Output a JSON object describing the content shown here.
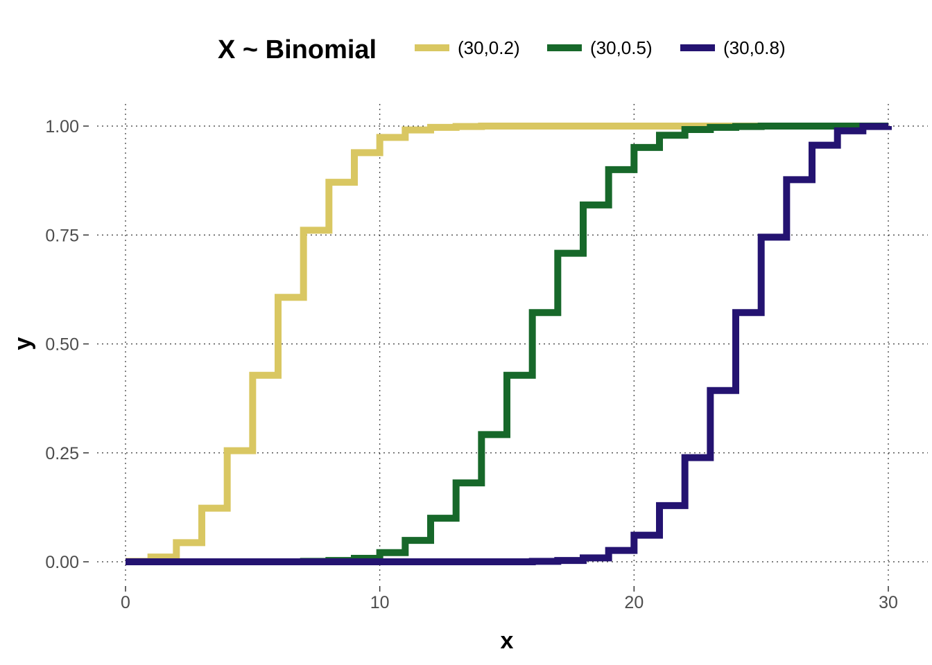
{
  "chart_data": {
    "type": "line",
    "step": true,
    "title": "",
    "xlabel": "x",
    "ylabel": "y",
    "xlim": [
      0,
      30
    ],
    "ylim": [
      0,
      1
    ],
    "x_ticks": [
      0,
      10,
      20,
      30
    ],
    "x_tick_labels": [
      "0",
      "10",
      "20",
      "30"
    ],
    "y_ticks": [
      0,
      0.25,
      0.5,
      0.75,
      1
    ],
    "y_tick_labels": [
      "0.00",
      "0.25",
      "0.50",
      "0.75",
      "1.00"
    ],
    "grid": true,
    "legend": {
      "title": "X ~ Binomial",
      "placement": "top"
    },
    "x": [
      0,
      1,
      2,
      3,
      4,
      5,
      6,
      7,
      8,
      9,
      10,
      11,
      12,
      13,
      14,
      15,
      16,
      17,
      18,
      19,
      20,
      21,
      22,
      23,
      24,
      25,
      26,
      27,
      28,
      29,
      30
    ],
    "series": [
      {
        "name": "(30,0.2)",
        "color": "#D9C762",
        "values": [
          0.001,
          0.011,
          0.044,
          0.123,
          0.255,
          0.428,
          0.607,
          0.761,
          0.871,
          0.939,
          0.974,
          0.991,
          0.997,
          0.999,
          1,
          1,
          1,
          1,
          1,
          1,
          1,
          1,
          1,
          1,
          1,
          1,
          1,
          1,
          1,
          1,
          1
        ]
      },
      {
        "name": "(30,0.5)",
        "color": "#17682A",
        "values": [
          0,
          0,
          0,
          0,
          0,
          0,
          0,
          0.001,
          0.003,
          0.008,
          0.021,
          0.049,
          0.1,
          0.181,
          0.292,
          0.428,
          0.572,
          0.708,
          0.819,
          0.9,
          0.951,
          0.979,
          0.992,
          0.997,
          0.999,
          1,
          1,
          1,
          1,
          1,
          1
        ]
      },
      {
        "name": "(30,0.8)",
        "color": "#241371",
        "values": [
          0,
          0,
          0,
          0,
          0,
          0,
          0,
          0,
          0,
          0,
          0,
          0,
          0,
          0,
          0,
          0,
          0.001,
          0.003,
          0.009,
          0.026,
          0.061,
          0.129,
          0.239,
          0.393,
          0.572,
          0.745,
          0.877,
          0.956,
          0.989,
          0.999,
          1
        ]
      }
    ]
  }
}
